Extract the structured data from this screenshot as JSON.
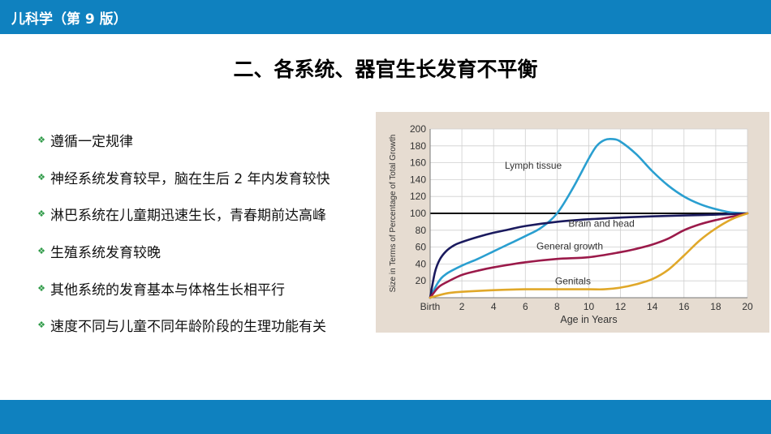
{
  "header": {
    "book_title": "儿科学（第 9 版）"
  },
  "slide": {
    "title": "二、各系统、器官生长发育不平衡",
    "bullets": [
      "遵循一定规律",
      "神经系统发育较早，脑在生后 2 年内发育较快",
      "淋巴系统在儿童期迅速生长，青春期前达高峰",
      "生殖系统发育较晚",
      "其他系统的发育基本与体格生长相平行",
      "速度不同与儿童不同年龄阶段的生理功能有关"
    ]
  },
  "colors": {
    "brand_blue": "#0f81bf",
    "bullet_green": "#2e9a47",
    "chart_background": "#e6dcd1"
  },
  "chart_data": {
    "type": "line",
    "xlabel": "Age in Years",
    "ylabel": "Size in Terms of Percentage of Total Growth",
    "x_ticks": [
      "Birth",
      "2",
      "4",
      "6",
      "8",
      "10",
      "12",
      "14",
      "16",
      "18",
      "20"
    ],
    "y_ticks": [
      "20",
      "40",
      "60",
      "80",
      "100",
      "120",
      "140",
      "160",
      "180",
      "200"
    ],
    "xlim": [
      0,
      20
    ],
    "ylim": [
      0,
      200
    ],
    "grid": true,
    "reference_line": 100,
    "series": [
      {
        "name": "Lymph tissue",
        "color": "#2a9fd0",
        "x": [
          0,
          0.5,
          1,
          2,
          3,
          4,
          5,
          6,
          7,
          8,
          9,
          10,
          10.5,
          11,
          11.5,
          12,
          13,
          14,
          15,
          16,
          17,
          18,
          19,
          20
        ],
        "y": [
          0,
          18,
          28,
          38,
          46,
          55,
          64,
          73,
          83,
          100,
          130,
          165,
          180,
          187,
          188,
          185,
          170,
          150,
          133,
          120,
          111,
          105,
          101,
          100
        ]
      },
      {
        "name": "Brain and head",
        "color": "#1a1a5e",
        "x": [
          0,
          0.3,
          0.6,
          1,
          1.5,
          2,
          3,
          4,
          5,
          6,
          8,
          10,
          12,
          14,
          16,
          18,
          20
        ],
        "y": [
          0,
          30,
          45,
          55,
          62,
          66,
          72,
          77,
          81,
          85,
          90,
          93,
          95,
          96.5,
          97.5,
          98.5,
          100
        ]
      },
      {
        "name": "General growth",
        "color": "#9b1a4a",
        "x": [
          0,
          0.5,
          1,
          2,
          3,
          4,
          6,
          8,
          10,
          12,
          13,
          14,
          15,
          16,
          17,
          18,
          19,
          20
        ],
        "y": [
          0,
          12,
          18,
          27,
          32,
          36,
          42,
          46,
          48,
          54,
          58,
          63,
          70,
          80,
          87,
          92,
          96,
          100
        ]
      },
      {
        "name": "Genitals",
        "color": "#e0a82a",
        "x": [
          0,
          1,
          2,
          4,
          6,
          8,
          10,
          11,
          12,
          13,
          14,
          15,
          16,
          17,
          18,
          19,
          20
        ],
        "y": [
          0,
          5,
          7,
          9,
          10,
          10,
          10,
          10,
          12,
          16,
          22,
          33,
          50,
          68,
          82,
          93,
          100
        ]
      }
    ],
    "series_labels": [
      {
        "text": "Lymph tissue",
        "x": 6.5,
        "y": 153
      },
      {
        "text": "Brain and head",
        "x": 10.8,
        "y": 84
      },
      {
        "text": "General growth",
        "x": 8.8,
        "y": 57
      },
      {
        "text": "Genitals",
        "x": 9.0,
        "y": 16
      }
    ]
  }
}
